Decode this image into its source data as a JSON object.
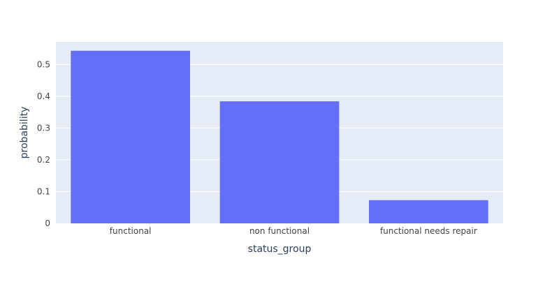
{
  "chart_data": {
    "type": "bar",
    "categories": [
      "functional",
      "non functional",
      "functional needs repair"
    ],
    "values": [
      0.543,
      0.384,
      0.073
    ],
    "title": "",
    "xlabel": "status_group",
    "ylabel": "probability",
    "ylim": [
      0,
      0.571
    ],
    "yticks": [
      0,
      0.1,
      0.2,
      0.3,
      0.4,
      0.5
    ],
    "ytick_labels": [
      "0",
      "0.1",
      "0.2",
      "0.3",
      "0.4",
      "0.5"
    ],
    "grid": true,
    "colors": {
      "bar": "#636efa",
      "plot_bg": "#e5ecf6",
      "grid": "#ffffff",
      "text": "#2a3f5f",
      "tick_text": "#444444"
    }
  }
}
